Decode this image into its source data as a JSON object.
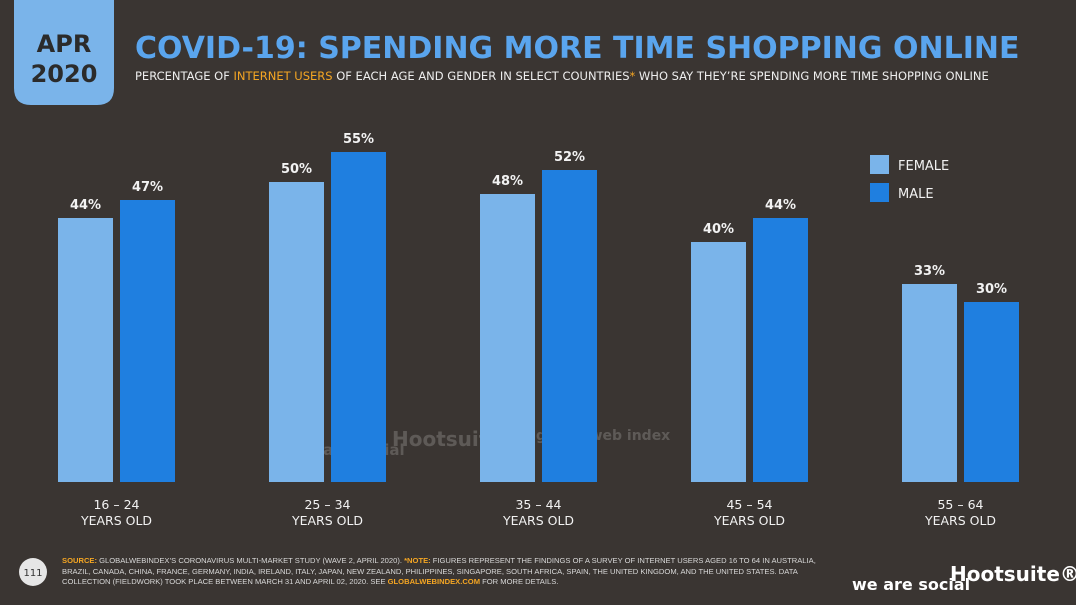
{
  "header": {
    "badge_month": "APR",
    "badge_year": "2020"
  },
  "chart_data": {
    "type": "bar",
    "title": "COVID-19: SPENDING MORE TIME SHOPPING ONLINE",
    "subtitle_parts": [
      "PERCENTAGE OF ",
      "INTERNET USERS",
      " OF EACH AGE AND GENDER IN SELECT COUNTRIES",
      "*",
      " WHO SAY THEY’RE SPENDING MORE TIME SHOPPING ONLINE"
    ],
    "categories": [
      "16 – 24 YEARS OLD",
      "25 – 34 YEARS OLD",
      "35 – 44 YEARS OLD",
      "45 – 54 YEARS OLD",
      "55 – 64 YEARS OLD"
    ],
    "series": [
      {
        "name": "FEMALE",
        "color": "#7ab4ea",
        "values": [
          44,
          50,
          48,
          40,
          33
        ],
        "value_labels": [
          "44%",
          "50%",
          "48%",
          "40%",
          "33%"
        ]
      },
      {
        "name": "MALE",
        "color": "#1f7fe0",
        "values": [
          47,
          55,
          52,
          44,
          30
        ],
        "value_labels": [
          "47%",
          "55%",
          "52%",
          "44%",
          "30%"
        ]
      }
    ],
    "ylim": [
      0,
      80
    ],
    "legend": "top-right"
  },
  "watermarks": [
    "we are social",
    "Hootsuite",
    "global web index"
  ],
  "footer": {
    "page": "111",
    "source_parts": [
      "SOURCE:",
      " GLOBALWEBINDEX’S CORONAVIRUS MULTI-MARKET STUDY (WAVE 2, APRIL 2020). ",
      "*NOTE:",
      " FIGURES REPRESENT THE FINDINGS OF A SURVEY OF INTERNET USERS AGED 16 TO 64 IN AUSTRALIA, BRAZIL, CANADA, CHINA, FRANCE, GERMANY, INDIA, IRELAND, ITALY, JAPAN, NEW ZEALAND, PHILIPPINES, SINGAPORE, SOUTH AFRICA, SPAIN, THE UNITED KINGDOM, AND THE UNITED STATES. DATA COLLECTION (FIELDWORK) TOOK PLACE BETWEEN MARCH 31 AND APRIL 02, 2020. SEE ",
      "GLOBALWEBINDEX.COM",
      " FOR MORE DETAILS."
    ],
    "logo_left": "we are social",
    "logo_right": "Hootsuite®"
  }
}
